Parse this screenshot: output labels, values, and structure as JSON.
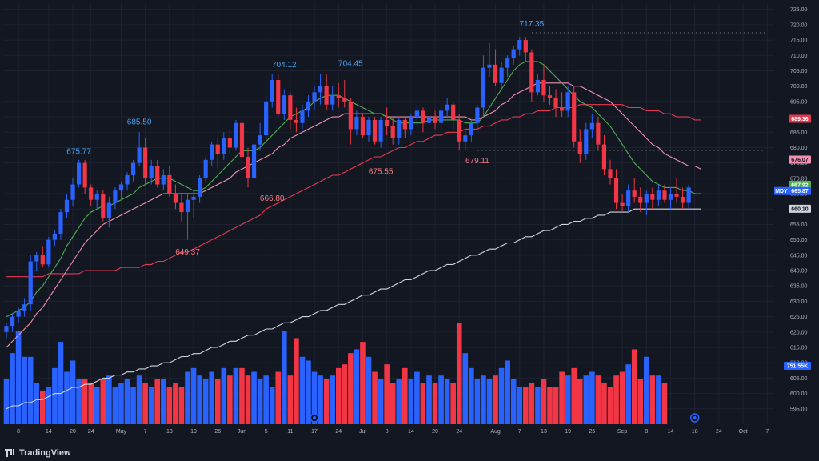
{
  "colors": {
    "background": "#131722",
    "grid": "#1e2230",
    "up": "#2962ff",
    "down": "#f23645",
    "ma_fast": "#4caf50",
    "ma_mid": "#f48fb1",
    "ma_slow": "#e53950",
    "ma_long": "#d1d4dc",
    "axis_text": "#b2b5be"
  },
  "brand": {
    "name": "TradingView",
    "icon": "tradingview-logo-icon"
  },
  "chart_data": {
    "type": "candlestick",
    "ticker": "MDY",
    "ylim": [
      590,
      727
    ],
    "yticks": [
      595,
      600,
      605,
      610,
      615,
      620,
      625,
      630,
      635,
      640,
      645,
      650,
      655,
      660,
      665,
      670,
      675,
      680,
      685,
      690,
      695,
      700,
      705,
      710,
      715,
      720,
      725
    ],
    "xtick_labels": [
      {
        "i": 2,
        "label": "8"
      },
      {
        "i": 7,
        "label": "14"
      },
      {
        "i": 11,
        "label": "20"
      },
      {
        "i": 14,
        "label": "24"
      },
      {
        "i": 19,
        "label": "May"
      },
      {
        "i": 23,
        "label": "7"
      },
      {
        "i": 27,
        "label": "13"
      },
      {
        "i": 31,
        "label": "19"
      },
      {
        "i": 35,
        "label": "26"
      },
      {
        "i": 39,
        "label": "Jun"
      },
      {
        "i": 43,
        "label": "5"
      },
      {
        "i": 47,
        "label": "11"
      },
      {
        "i": 51,
        "label": "17"
      },
      {
        "i": 55,
        "label": "24"
      },
      {
        "i": 59,
        "label": "Jul"
      },
      {
        "i": 63,
        "label": "8"
      },
      {
        "i": 67,
        "label": "14"
      },
      {
        "i": 71,
        "label": "20"
      },
      {
        "i": 75,
        "label": "24"
      },
      {
        "i": 81,
        "label": "Aug"
      },
      {
        "i": 85,
        "label": "7"
      },
      {
        "i": 89,
        "label": "13"
      },
      {
        "i": 93,
        "label": "19"
      },
      {
        "i": 97,
        "label": "25"
      },
      {
        "i": 102,
        "label": "Sep"
      },
      {
        "i": 106,
        "label": "8"
      },
      {
        "i": 110,
        "label": "14"
      },
      {
        "i": 114,
        "label": "18"
      },
      {
        "i": 118,
        "label": "24"
      },
      {
        "i": 122,
        "label": "Oct"
      },
      {
        "i": 126,
        "label": "7"
      }
    ],
    "candles": [
      [
        620,
        623,
        618,
        622
      ],
      [
        622,
        626,
        620,
        625
      ],
      [
        625,
        628,
        623,
        627
      ],
      [
        627,
        631,
        625,
        629
      ],
      [
        629,
        645,
        627,
        643
      ],
      [
        643,
        646,
        640,
        645
      ],
      [
        645,
        648,
        641,
        642
      ],
      [
        642,
        651,
        641,
        650
      ],
      [
        650,
        653,
        648,
        652
      ],
      [
        652,
        660,
        650,
        659
      ],
      [
        659,
        665,
        657,
        663
      ],
      [
        663,
        670,
        661,
        668
      ],
      [
        668,
        676,
        667,
        675
      ],
      [
        675,
        676,
        665,
        667
      ],
      [
        667,
        668,
        661,
        663
      ],
      [
        663,
        666,
        660,
        665
      ],
      [
        665,
        666,
        656,
        657
      ],
      [
        657,
        664,
        654,
        662
      ],
      [
        662,
        667,
        660,
        666
      ],
      [
        666,
        669,
        663,
        668
      ],
      [
        668,
        672,
        666,
        671
      ],
      [
        671,
        676,
        669,
        675
      ],
      [
        675,
        685,
        674,
        680
      ],
      [
        680,
        683,
        668,
        670
      ],
      [
        670,
        676,
        668,
        674
      ],
      [
        674,
        676,
        667,
        668
      ],
      [
        668,
        673,
        666,
        671
      ],
      [
        671,
        674,
        664,
        665
      ],
      [
        665,
        668,
        660,
        662
      ],
      [
        662,
        665,
        656,
        659
      ],
      [
        659,
        665,
        650,
        663
      ],
      [
        663,
        666,
        657,
        664
      ],
      [
        664,
        671,
        662,
        670
      ],
      [
        670,
        677,
        669,
        676
      ],
      [
        676,
        682,
        674,
        681
      ],
      [
        681,
        683,
        673,
        678
      ],
      [
        678,
        685,
        676,
        683
      ],
      [
        683,
        686,
        678,
        680
      ],
      [
        680,
        689,
        679,
        688
      ],
      [
        688,
        690,
        672,
        677
      ],
      [
        677,
        680,
        667,
        670
      ],
      [
        670,
        682,
        669,
        681
      ],
      [
        681,
        688,
        679,
        684
      ],
      [
        684,
        697,
        682,
        695
      ],
      [
        695,
        704,
        693,
        702
      ],
      [
        702,
        704,
        690,
        691
      ],
      [
        691,
        699,
        689,
        697
      ],
      [
        697,
        698,
        686,
        689
      ],
      [
        689,
        693,
        685,
        688
      ],
      [
        688,
        694,
        686,
        692
      ],
      [
        692,
        697,
        690,
        695
      ],
      [
        695,
        700,
        692,
        698
      ],
      [
        698,
        704,
        694,
        700
      ],
      [
        700,
        704,
        692,
        694
      ],
      [
        694,
        700,
        692,
        697
      ],
      [
        697,
        701,
        693,
        696
      ],
      [
        696,
        702,
        693,
        695
      ],
      [
        695,
        696,
        681,
        686
      ],
      [
        686,
        692,
        684,
        690
      ],
      [
        690,
        691,
        683,
        684
      ],
      [
        684,
        690,
        682,
        689
      ],
      [
        689,
        690,
        681,
        682
      ],
      [
        682,
        690,
        680,
        689
      ],
      [
        689,
        693,
        684,
        687
      ],
      [
        687,
        690,
        681,
        683
      ],
      [
        683,
        690,
        681,
        689
      ],
      [
        689,
        690,
        683,
        686
      ],
      [
        686,
        691,
        684,
        690
      ],
      [
        690,
        694,
        687,
        692
      ],
      [
        692,
        693,
        685,
        688
      ],
      [
        688,
        691,
        684,
        690
      ],
      [
        690,
        692,
        686,
        688
      ],
      [
        688,
        694,
        686,
        692
      ],
      [
        692,
        696,
        690,
        694
      ],
      [
        694,
        695,
        686,
        689
      ],
      [
        689,
        691,
        679,
        682
      ],
      [
        682,
        686,
        679,
        684
      ],
      [
        684,
        689,
        682,
        688
      ],
      [
        688,
        694,
        686,
        693
      ],
      [
        693,
        710,
        690,
        706
      ],
      [
        706,
        714,
        703,
        707
      ],
      [
        707,
        712,
        700,
        701
      ],
      [
        701,
        708,
        699,
        706
      ],
      [
        706,
        710,
        703,
        709
      ],
      [
        709,
        713,
        707,
        712
      ],
      [
        712,
        716,
        710,
        715
      ],
      [
        715,
        716,
        708,
        711
      ],
      [
        711,
        712,
        695,
        698
      ],
      [
        698,
        704,
        697,
        702
      ],
      [
        702,
        707,
        695,
        697
      ],
      [
        697,
        700,
        694,
        696
      ],
      [
        696,
        699,
        690,
        693
      ],
      [
        693,
        698,
        690,
        692
      ],
      [
        692,
        700,
        690,
        698
      ],
      [
        698,
        700,
        680,
        682
      ],
      [
        682,
        686,
        675,
        678
      ],
      [
        678,
        688,
        676,
        686
      ],
      [
        686,
        691,
        683,
        688
      ],
      [
        688,
        690,
        679,
        681
      ],
      [
        681,
        684,
        671,
        673
      ],
      [
        673,
        676,
        668,
        670
      ],
      [
        670,
        673,
        660,
        662
      ],
      [
        662,
        665,
        659,
        661
      ],
      [
        661,
        668,
        659,
        666
      ],
      [
        666,
        670,
        662,
        664
      ],
      [
        664,
        667,
        659,
        662
      ],
      [
        662,
        666,
        658,
        665
      ],
      [
        665,
        667,
        660,
        663
      ],
      [
        663,
        668,
        661,
        666
      ],
      [
        666,
        668,
        662,
        663
      ],
      [
        663,
        667,
        660,
        665
      ],
      [
        665,
        670,
        662,
        664
      ],
      [
        664,
        667,
        660,
        662
      ],
      [
        662,
        668,
        660,
        667
      ]
    ],
    "volume_range": [
      0,
      3100000
    ],
    "volumes": [
      1200000,
      1900000,
      2500000,
      1800000,
      1800000,
      1100000,
      900000,
      1000000,
      1500000,
      2200000,
      1400000,
      1700000,
      1200000,
      1200000,
      1100000,
      1000000,
      1200000,
      1300000,
      1000000,
      1100000,
      1200000,
      1000000,
      1300000,
      1100000,
      1000000,
      1200000,
      1200000,
      1000000,
      1100000,
      1000000,
      1400000,
      1500000,
      1300000,
      1200000,
      1400000,
      1200000,
      1500000,
      1300000,
      1500000,
      1500000,
      1300000,
      1400000,
      1200000,
      1300000,
      1000000,
      1400000,
      2500000,
      1300000,
      2300000,
      1800000,
      1700000,
      1400000,
      1300000,
      1200000,
      1300000,
      1500000,
      1600000,
      1900000,
      2000000,
      2200000,
      1800000,
      1400000,
      1200000,
      1600000,
      1100000,
      1200000,
      1500000,
      1200000,
      1400000,
      1100000,
      1300000,
      1100000,
      1300000,
      1200000,
      1100000,
      2700000,
      1900000,
      1500000,
      1200000,
      1300000,
      1200000,
      1300000,
      1500000,
      1700000,
      1200000,
      1000000,
      1000000,
      1100000,
      1000000,
      1200000,
      1000000,
      1000000,
      1400000,
      1300000,
      1500000,
      1200000,
      1300000,
      1400000,
      1300000,
      1100000,
      1000000,
      1300000,
      1400000,
      1600000,
      2000000,
      1200000,
      1800000,
      1300000,
      1300000,
      1100000
    ],
    "ma_fast": [
      625,
      626,
      627,
      628,
      630,
      633,
      635,
      638,
      641,
      644,
      648,
      651,
      654,
      657,
      659,
      660,
      661,
      661,
      662,
      663,
      664,
      665,
      667,
      668,
      669,
      670,
      670,
      670,
      669,
      668,
      667,
      666,
      666,
      667,
      669,
      671,
      673,
      675,
      677,
      679,
      679,
      679,
      680,
      682,
      684,
      686,
      688,
      690,
      691,
      692,
      693,
      695,
      696,
      697,
      697,
      697,
      696,
      695,
      694,
      693,
      692,
      691,
      691,
      690,
      689,
      688,
      688,
      688,
      688,
      688,
      689,
      689,
      689,
      689,
      689,
      689,
      688,
      688,
      688,
      690,
      693,
      696,
      699,
      702,
      705,
      707,
      708,
      708,
      708,
      707,
      705,
      703,
      701,
      699,
      697,
      695,
      694,
      693,
      691,
      689,
      687,
      684,
      681,
      678,
      675,
      673,
      671,
      669,
      668,
      667,
      667,
      667,
      666,
      666,
      665,
      665
    ],
    "ma_mid": [
      615,
      617,
      619,
      621,
      623,
      626,
      628,
      631,
      634,
      637,
      640,
      643,
      646,
      649,
      651,
      653,
      655,
      656,
      657,
      658,
      659,
      660,
      661,
      662,
      663,
      664,
      665,
      665,
      665,
      665,
      665,
      665,
      665,
      666,
      667,
      668,
      669,
      670,
      672,
      673,
      674,
      675,
      676,
      677,
      678,
      680,
      681,
      683,
      684,
      685,
      686,
      687,
      688,
      689,
      690,
      690,
      691,
      691,
      691,
      691,
      691,
      691,
      691,
      690,
      690,
      690,
      690,
      690,
      690,
      690,
      690,
      690,
      690,
      690,
      690,
      690,
      690,
      689,
      689,
      690,
      691,
      692,
      694,
      695,
      697,
      698,
      699,
      700,
      701,
      701,
      701,
      701,
      701,
      701,
      700,
      700,
      699,
      698,
      697,
      696,
      695,
      693,
      691,
      689,
      687,
      685,
      683,
      681,
      680,
      678,
      677,
      676,
      675,
      674,
      674,
      673
    ],
    "ma_slow": [
      638,
      638,
      638,
      638,
      638,
      638,
      638,
      639,
      639,
      639,
      639,
      639,
      639,
      640,
      640,
      640,
      640,
      640,
      640,
      641,
      641,
      641,
      641,
      642,
      642,
      643,
      643,
      644,
      645,
      646,
      646,
      647,
      648,
      649,
      650,
      651,
      652,
      653,
      654,
      655,
      656,
      657,
      658,
      660,
      661,
      662,
      663,
      664,
      665,
      666,
      667,
      668,
      669,
      670,
      671,
      671,
      672,
      673,
      674,
      675,
      676,
      677,
      677,
      678,
      679,
      680,
      680,
      681,
      682,
      682,
      683,
      684,
      684,
      685,
      685,
      685,
      686,
      686,
      686,
      687,
      687,
      688,
      689,
      689,
      690,
      690,
      691,
      691,
      692,
      692,
      692,
      693,
      693,
      693,
      693,
      694,
      694,
      694,
      694,
      694,
      694,
      694,
      694,
      693,
      693,
      693,
      692,
      692,
      692,
      691,
      691,
      690,
      690,
      690,
      689,
      689
    ],
    "ma_long": [
      595,
      596,
      596,
      597,
      597,
      598,
      598,
      599,
      600,
      600,
      601,
      602,
      602,
      603,
      603,
      604,
      605,
      605,
      606,
      606,
      607,
      607,
      608,
      608,
      609,
      609,
      610,
      610,
      611,
      612,
      612,
      613,
      613,
      614,
      615,
      615,
      616,
      617,
      617,
      618,
      619,
      619,
      620,
      621,
      621,
      622,
      623,
      623,
      624,
      625,
      625,
      626,
      627,
      627,
      628,
      629,
      629,
      630,
      631,
      632,
      632,
      633,
      634,
      634,
      635,
      636,
      637,
      637,
      638,
      639,
      640,
      640,
      641,
      642,
      642,
      643,
      644,
      645,
      645,
      646,
      647,
      647,
      648,
      649,
      649,
      650,
      651,
      651,
      652,
      653,
      653,
      654,
      655,
      655,
      656,
      656,
      657,
      657,
      658,
      658,
      659,
      659,
      659,
      659,
      660,
      660,
      660,
      660,
      660,
      660,
      660,
      660,
      660,
      660,
      660,
      660
    ],
    "annotations": [
      {
        "label": "675.77",
        "i": 12,
        "price": 675.77,
        "pos": "above",
        "color": "#42a5f5"
      },
      {
        "label": "685.50",
        "i": 22,
        "price": 685.5,
        "pos": "above",
        "color": "#42a5f5"
      },
      {
        "label": "649.37",
        "i": 30,
        "price": 649.37,
        "pos": "below",
        "color": "#f77c80"
      },
      {
        "label": "666.80",
        "i": 44,
        "price": 666.8,
        "pos": "below",
        "color": "#f77c80"
      },
      {
        "label": "704.12",
        "i": 46,
        "price": 704.12,
        "pos": "above",
        "color": "#42a5f5"
      },
      {
        "label": "704.45",
        "i": 57,
        "price": 704.45,
        "pos": "above",
        "color": "#42a5f5"
      },
      {
        "label": "675.55",
        "i": 62,
        "price": 675.55,
        "pos": "below",
        "color": "#f77c80"
      },
      {
        "label": "679.11",
        "i": 78,
        "price": 679.11,
        "pos": "below",
        "color": "#f77c80"
      },
      {
        "label": "717.35",
        "i": 87,
        "price": 717.35,
        "pos": "above",
        "color": "#42a5f5"
      }
    ],
    "price_tags": [
      {
        "label": "689.36",
        "price": 689.36,
        "bg": "#e53950",
        "fg": "#ffffff"
      },
      {
        "label": "676.07",
        "price": 676.07,
        "bg": "#f48fb1",
        "fg": "#131722"
      },
      {
        "label": "667.92",
        "price": 667.92,
        "bg": "#4caf50",
        "fg": "#ffffff"
      },
      {
        "label": "665.87",
        "price": 665.87,
        "bg": "#2962ff",
        "fg": "#ffffff",
        "ticker": "MDY"
      },
      {
        "label": "660.10",
        "price": 660.1,
        "bg": "#d1d4dc",
        "fg": "#131722"
      }
    ],
    "volume_tag": {
      "label": "751.55K",
      "bg": "#2962ff",
      "fg": "#ffffff"
    },
    "dashed_levels": [
      {
        "price": 717.35,
        "from_i": 87
      },
      {
        "price": 679.11,
        "from_i": 78
      }
    ],
    "event_markers": [
      51,
      114
    ]
  }
}
